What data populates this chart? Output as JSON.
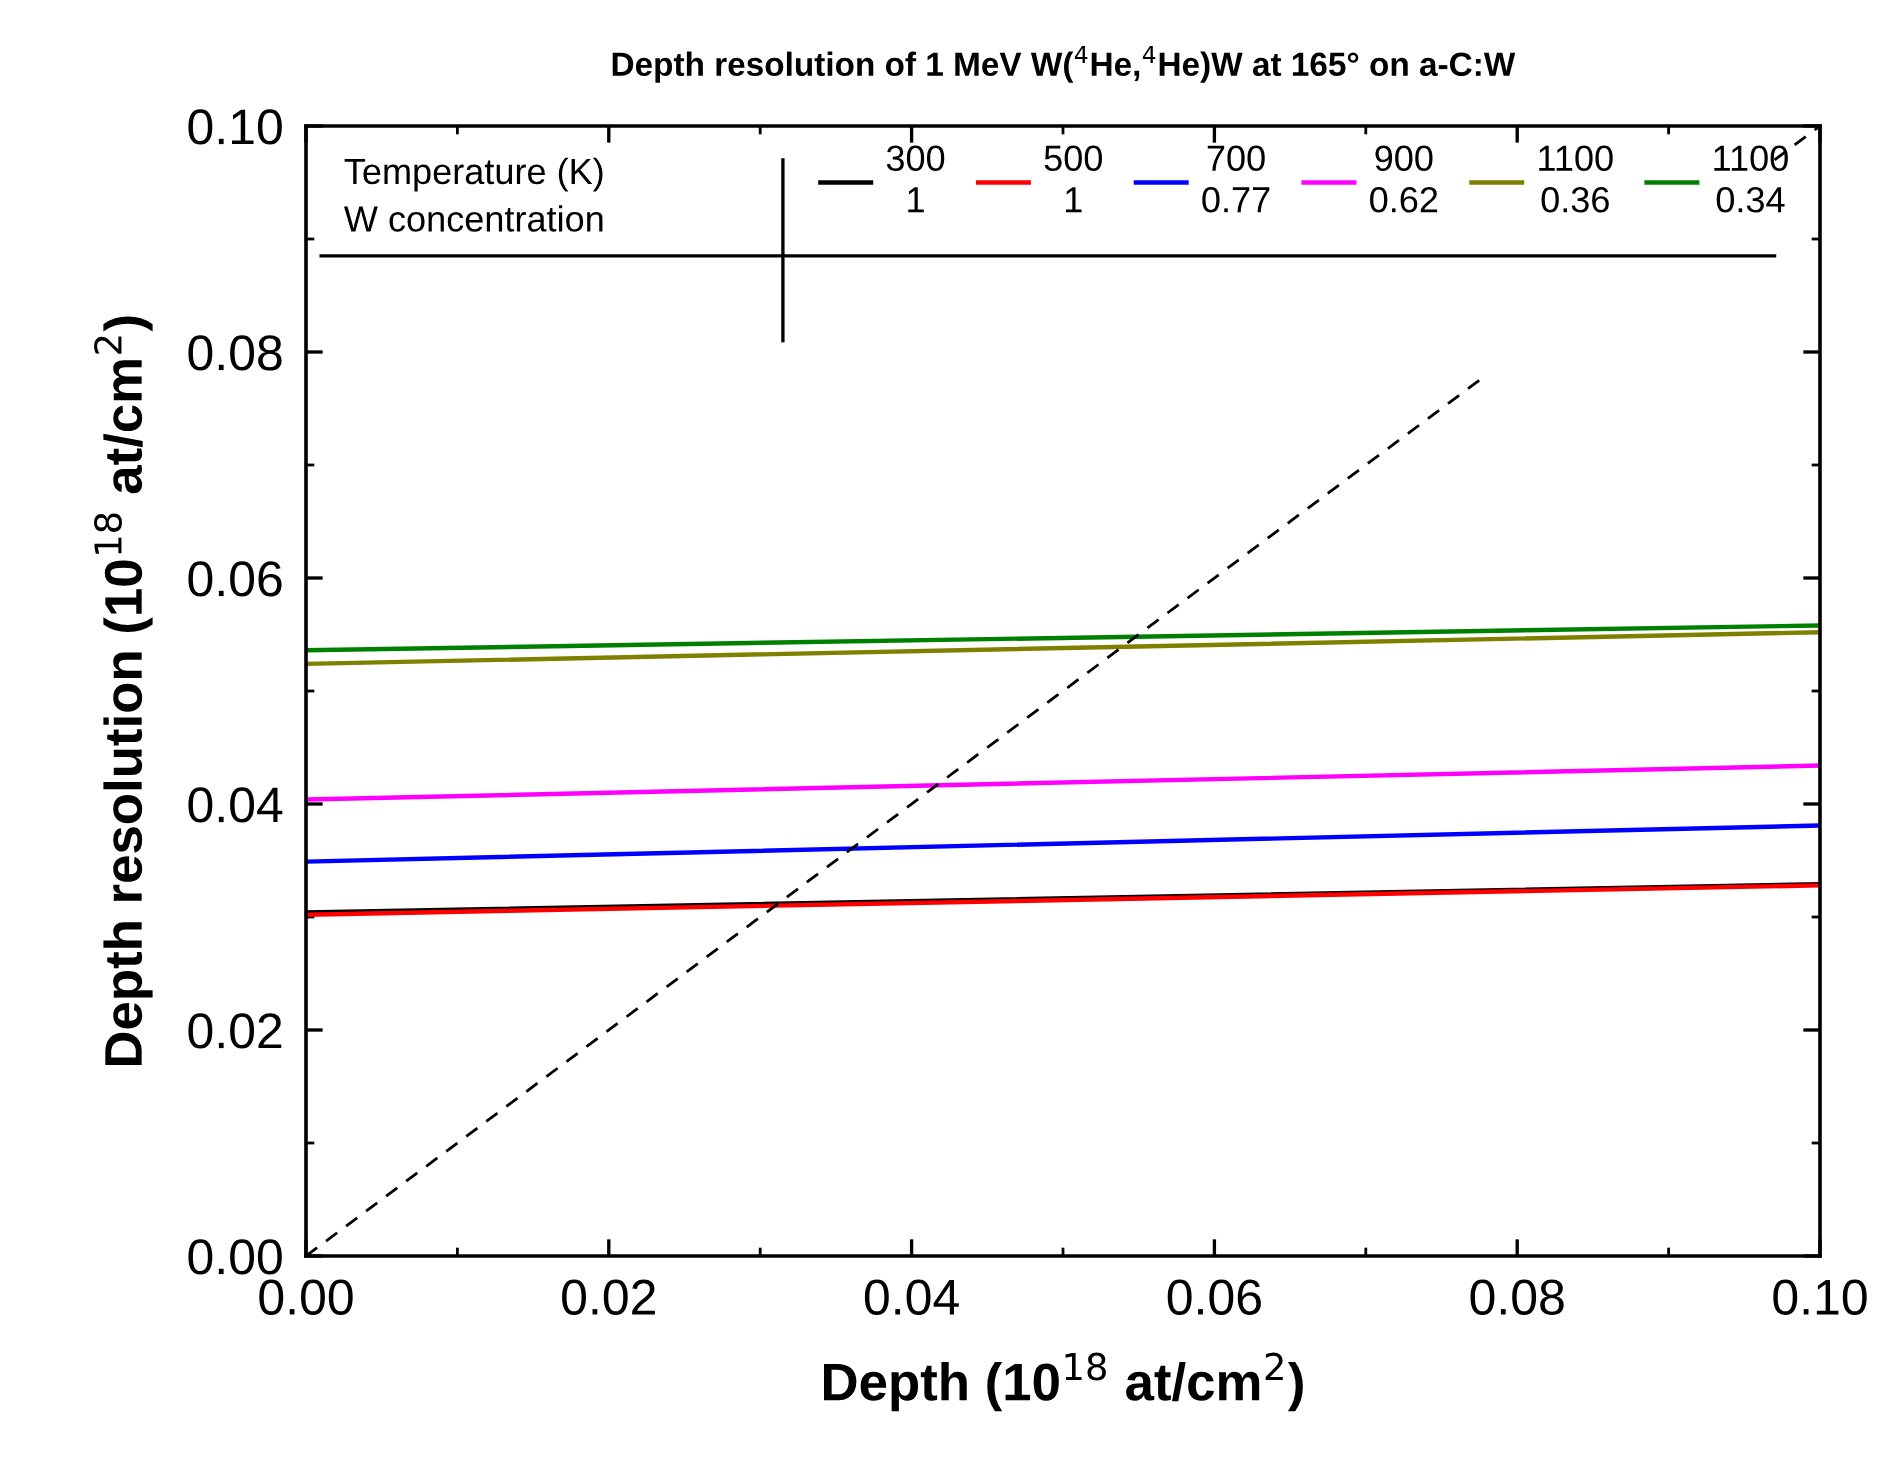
{
  "chart_data": {
    "type": "line",
    "title": "Depth resolution of 1 MeV W($^{4}$He,$^{4}$He)W at 165° on a-C:W",
    "xlabel": "Depth (10$^{18}$ at/cm$^{2}$)",
    "ylabel": "Depth resolution (10$^{18}$ at/cm$^{2}$)",
    "legend_title": "Temperature (K)\nW concentration",
    "x": [
      0,
      0.1
    ],
    "series": [
      {
        "name": "300\n1",
        "color": "#000000",
        "values": [
          0.0304,
          0.0329
        ]
      },
      {
        "name": "500\n1",
        "color": "#ff0000",
        "values": [
          0.0302,
          0.0328
        ]
      },
      {
        "name": "700\n0.77",
        "color": "#0000ff",
        "values": [
          0.0349,
          0.0381
        ]
      },
      {
        "name": "900\n0.62",
        "color": "#ff00ff",
        "values": [
          0.0404,
          0.0434
        ]
      },
      {
        "name": "1100\n0.36",
        "color": "#808000",
        "values": [
          0.0524,
          0.0552
        ]
      },
      {
        "name": "1100\n0.34",
        "color": "#008000",
        "values": [
          0.0536,
          0.0558
        ]
      },
      {
        "color": "#000000",
        "line_style": "dashed",
        "x": [
          0,
          0.078,
          0.085,
          0.097,
          0.1
        ],
        "values": [
          0,
          0.078,
          null,
          0.097,
          0.1
        ]
      }
    ],
    "xlim": [
      0,
      0.1
    ],
    "ylim": [
      0,
      0.1
    ],
    "xticks": [
      {
        "value": 0,
        "label": "0.00"
      },
      {
        "value": 0.02,
        "label": "0.02"
      },
      {
        "value": 0.04,
        "label": "0.04"
      },
      {
        "value": 0.06,
        "label": "0.06"
      },
      {
        "value": 0.08,
        "label": "0.08"
      },
      {
        "value": 0.1,
        "label": "0.10"
      }
    ],
    "yticks": [
      {
        "value": 0,
        "label": "0.00"
      },
      {
        "value": 0.02,
        "label": "0.02"
      },
      {
        "value": 0.04,
        "label": "0.04"
      },
      {
        "value": 0.06,
        "label": "0.06"
      },
      {
        "value": 0.08,
        "label": "0.08"
      },
      {
        "value": 0.1,
        "label": "0.10"
      }
    ],
    "ref_lines": [
      {
        "axis": "y",
        "value": 0.0885,
        "color": "#000000"
      }
    ],
    "grid": false,
    "legend": "top",
    "marker": "none",
    "line_style": "solid"
  }
}
